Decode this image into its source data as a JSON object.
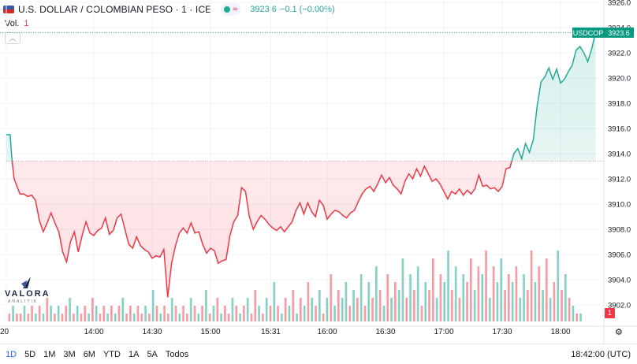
{
  "header": {
    "symbol_title": "U.S. DOLLAR / COLOMBIAN PESO · 1 · ICE",
    "status_glyph": "≈",
    "price": "3923.6",
    "change": "−0.1 (−0.00%)",
    "vol_label": "Vol.",
    "vol_value": "1"
  },
  "logo": {
    "name": "VALORA",
    "sub": "ANALITIK"
  },
  "price_tag": {
    "symbol": "USDCOP",
    "value": "3923.6"
  },
  "volume_marker": "1",
  "range_buttons": [
    "1D",
    "5D",
    "1M",
    "3M",
    "6M",
    "YTD",
    "1A",
    "5A",
    "Todos"
  ],
  "active_range": "1D",
  "clock": "18:42:00 (UTC)",
  "colors": {
    "up": "#22ab94",
    "down": "#f23645",
    "accent": "#2962ff"
  },
  "icons": {
    "settings": "gear-icon",
    "collapse": "chevron-up-icon"
  },
  "chart_data": {
    "type": "area",
    "title": "U.S. DOLLAR / COLOMBIAN PESO · 1 · ICE",
    "baseline": 3913.4,
    "ylim": [
      3901.0,
      3926.0
    ],
    "y_ticks": [
      3902.0,
      3904.0,
      3906.0,
      3908.0,
      3910.0,
      3912.0,
      3914.0,
      3916.0,
      3918.0,
      3920.0,
      3922.0,
      3924.0,
      3926.0
    ],
    "x_ticks": [
      "20",
      "14:00",
      "14:30",
      "15:00",
      "15:31",
      "16:00",
      "16:30",
      "17:00",
      "17:30",
      "18:00"
    ],
    "x_tick_minutes": [
      795,
      840,
      870,
      900,
      931,
      960,
      990,
      1020,
      1050,
      1080
    ],
    "xlim": [
      795,
      1121
    ],
    "price_series": [
      [
        795,
        3915.5
      ],
      [
        797,
        3915.5
      ],
      [
        797.5,
        3914.3
      ],
      [
        798,
        3913.4
      ],
      [
        799,
        3912.0
      ],
      [
        800,
        3911.6
      ],
      [
        802,
        3910.8
      ],
      [
        804,
        3910.8
      ],
      [
        806,
        3910.6
      ],
      [
        808,
        3910.7
      ],
      [
        810,
        3910.3
      ],
      [
        812,
        3908.7
      ],
      [
        814,
        3907.8
      ],
      [
        816,
        3908.5
      ],
      [
        818,
        3909.3
      ],
      [
        820,
        3908.5
      ],
      [
        822,
        3907.8
      ],
      [
        824,
        3906.2
      ],
      [
        826,
        3905.4
      ],
      [
        828,
        3907.0
      ],
      [
        830,
        3907.8
      ],
      [
        832,
        3906.2
      ],
      [
        834,
        3907.5
      ],
      [
        836,
        3908.6
      ],
      [
        838,
        3907.7
      ],
      [
        840,
        3907.5
      ],
      [
        842,
        3907.9
      ],
      [
        844,
        3908.1
      ],
      [
        846,
        3908.9
      ],
      [
        848,
        3907.6
      ],
      [
        850,
        3907.9
      ],
      [
        852,
        3908.9
      ],
      [
        854,
        3909.2
      ],
      [
        856,
        3908.0
      ],
      [
        858,
        3906.8
      ],
      [
        860,
        3906.5
      ],
      [
        862,
        3907.4
      ],
      [
        864,
        3906.7
      ],
      [
        866,
        3906.4
      ],
      [
        868,
        3906.2
      ],
      [
        870,
        3905.7
      ],
      [
        872,
        3905.9
      ],
      [
        874,
        3905.8
      ],
      [
        876,
        3906.4
      ],
      [
        878,
        3902.6
      ],
      [
        880,
        3905.3
      ],
      [
        882,
        3906.7
      ],
      [
        884,
        3907.7
      ],
      [
        886,
        3908.1
      ],
      [
        888,
        3907.7
      ],
      [
        890,
        3908.5
      ],
      [
        892,
        3907.7
      ],
      [
        894,
        3907.8
      ],
      [
        896,
        3906.8
      ],
      [
        898,
        3906.1
      ],
      [
        900,
        3906.5
      ],
      [
        902,
        3906.3
      ],
      [
        904,
        3905.3
      ],
      [
        906,
        3905.5
      ],
      [
        908,
        3905.6
      ],
      [
        910,
        3907.5
      ],
      [
        912,
        3908.6
      ],
      [
        914,
        3909.1
      ],
      [
        916,
        3911.3
      ],
      [
        918,
        3911.0
      ],
      [
        920,
        3909.0
      ],
      [
        922,
        3908.0
      ],
      [
        924,
        3908.6
      ],
      [
        926,
        3909.1
      ],
      [
        928,
        3908.8
      ],
      [
        930,
        3908.4
      ],
      [
        932,
        3908.1
      ],
      [
        934,
        3907.9
      ],
      [
        936,
        3908.2
      ],
      [
        938,
        3907.8
      ],
      [
        940,
        3908.2
      ],
      [
        942,
        3908.6
      ],
      [
        944,
        3909.5
      ],
      [
        946,
        3910.1
      ],
      [
        948,
        3909.2
      ],
      [
        950,
        3910.1
      ],
      [
        952,
        3909.4
      ],
      [
        954,
        3909.0
      ],
      [
        956,
        3910.3
      ],
      [
        958,
        3909.9
      ],
      [
        960,
        3908.8
      ],
      [
        962,
        3909.2
      ],
      [
        964,
        3909.5
      ],
      [
        966,
        3909.4
      ],
      [
        968,
        3909.1
      ],
      [
        970,
        3908.9
      ],
      [
        972,
        3909.3
      ],
      [
        974,
        3909.5
      ],
      [
        976,
        3910.2
      ],
      [
        978,
        3910.8
      ],
      [
        980,
        3911.2
      ],
      [
        982,
        3911.4
      ],
      [
        984,
        3911.0
      ],
      [
        986,
        3911.6
      ],
      [
        988,
        3912.3
      ],
      [
        990,
        3911.7
      ],
      [
        992,
        3912.1
      ],
      [
        994,
        3911.5
      ],
      [
        996,
        3911.2
      ],
      [
        998,
        3910.8
      ],
      [
        1000,
        3911.8
      ],
      [
        1002,
        3912.4
      ],
      [
        1004,
        3912.0
      ],
      [
        1006,
        3912.8
      ],
      [
        1008,
        3912.2
      ],
      [
        1010,
        3913.0
      ],
      [
        1012,
        3912.4
      ],
      [
        1014,
        3911.8
      ],
      [
        1016,
        3912.0
      ],
      [
        1018,
        3911.6
      ],
      [
        1020,
        3911.0
      ],
      [
        1022,
        3910.4
      ],
      [
        1024,
        3911.0
      ],
      [
        1026,
        3910.8
      ],
      [
        1028,
        3911.2
      ],
      [
        1030,
        3910.7
      ],
      [
        1032,
        3911.1
      ],
      [
        1034,
        3910.8
      ],
      [
        1036,
        3911.2
      ],
      [
        1038,
        3912.3
      ],
      [
        1040,
        3911.4
      ],
      [
        1042,
        3911.5
      ],
      [
        1044,
        3911.2
      ],
      [
        1046,
        3911.3
      ],
      [
        1048,
        3911.0
      ],
      [
        1050,
        3911.4
      ],
      [
        1052,
        3912.8
      ],
      [
        1054,
        3912.9
      ],
      [
        1056,
        3914.0
      ],
      [
        1058,
        3914.4
      ],
      [
        1060,
        3913.6
      ],
      [
        1062,
        3914.8
      ],
      [
        1064,
        3914.1
      ],
      [
        1066,
        3915.1
      ],
      [
        1068,
        3917.8
      ],
      [
        1070,
        3919.7
      ],
      [
        1072,
        3920.1
      ],
      [
        1074,
        3920.8
      ],
      [
        1076,
        3919.9
      ],
      [
        1078,
        3920.7
      ],
      [
        1080,
        3919.6
      ],
      [
        1082,
        3919.9
      ],
      [
        1084,
        3920.5
      ],
      [
        1086,
        3921.0
      ],
      [
        1088,
        3922.2
      ],
      [
        1090,
        3922.5
      ],
      [
        1092,
        3922.0
      ],
      [
        1094,
        3921.3
      ],
      [
        1096,
        3922.3
      ],
      [
        1098,
        3923.6
      ]
    ],
    "volume": [
      {
        "v": 1,
        "c": "d"
      },
      {
        "v": 2,
        "c": "u"
      },
      {
        "v": 1,
        "c": "d"
      },
      {
        "v": 1,
        "c": "d"
      },
      {
        "v": 2,
        "c": "u"
      },
      {
        "v": 1,
        "c": "d"
      },
      {
        "v": 2,
        "c": "d"
      },
      {
        "v": 1,
        "c": "u"
      },
      {
        "v": 2,
        "c": "d"
      },
      {
        "v": 1,
        "c": "u"
      },
      {
        "v": 3,
        "c": "d"
      },
      {
        "v": 2,
        "c": "u"
      },
      {
        "v": 1,
        "c": "d"
      },
      {
        "v": 2,
        "c": "u"
      },
      {
        "v": 1,
        "c": "d"
      },
      {
        "v": 2,
        "c": "d"
      },
      {
        "v": 3,
        "c": "u"
      },
      {
        "v": 1,
        "c": "d"
      },
      {
        "v": 2,
        "c": "u"
      },
      {
        "v": 1,
        "c": "d"
      },
      {
        "v": 2,
        "c": "d"
      },
      {
        "v": 1,
        "c": "u"
      },
      {
        "v": 3,
        "c": "d"
      },
      {
        "v": 2,
        "c": "u"
      },
      {
        "v": 1,
        "c": "d"
      },
      {
        "v": 2,
        "c": "d"
      },
      {
        "v": 1,
        "c": "u"
      },
      {
        "v": 2,
        "c": "d"
      },
      {
        "v": 1,
        "c": "u"
      },
      {
        "v": 2,
        "c": "d"
      },
      {
        "v": 3,
        "c": "u"
      },
      {
        "v": 1,
        "c": "d"
      },
      {
        "v": 2,
        "c": "d"
      },
      {
        "v": 1,
        "c": "u"
      },
      {
        "v": 2,
        "c": "d"
      },
      {
        "v": 1,
        "c": "d"
      },
      {
        "v": 2,
        "c": "u"
      },
      {
        "v": 1,
        "c": "d"
      },
      {
        "v": 4,
        "c": "u"
      },
      {
        "v": 2,
        "c": "d"
      },
      {
        "v": 1,
        "c": "u"
      },
      {
        "v": 2,
        "c": "d"
      },
      {
        "v": 1,
        "c": "d"
      },
      {
        "v": 3,
        "c": "u"
      },
      {
        "v": 2,
        "c": "d"
      },
      {
        "v": 1,
        "c": "u"
      },
      {
        "v": 2,
        "c": "d"
      },
      {
        "v": 1,
        "c": "d"
      },
      {
        "v": 3,
        "c": "u"
      },
      {
        "v": 2,
        "c": "d"
      },
      {
        "v": 1,
        "c": "u"
      },
      {
        "v": 2,
        "c": "d"
      },
      {
        "v": 4,
        "c": "u"
      },
      {
        "v": 1,
        "c": "d"
      },
      {
        "v": 2,
        "c": "u"
      },
      {
        "v": 3,
        "c": "d"
      },
      {
        "v": 1,
        "c": "u"
      },
      {
        "v": 2,
        "c": "d"
      },
      {
        "v": 1,
        "c": "d"
      },
      {
        "v": 3,
        "c": "u"
      },
      {
        "v": 2,
        "c": "d"
      },
      {
        "v": 1,
        "c": "u"
      },
      {
        "v": 2,
        "c": "d"
      },
      {
        "v": 3,
        "c": "u"
      },
      {
        "v": 1,
        "c": "d"
      },
      {
        "v": 4,
        "c": "d"
      },
      {
        "v": 2,
        "c": "u"
      },
      {
        "v": 1,
        "c": "d"
      },
      {
        "v": 3,
        "c": "u"
      },
      {
        "v": 2,
        "c": "d"
      },
      {
        "v": 5,
        "c": "u"
      },
      {
        "v": 2,
        "c": "d"
      },
      {
        "v": 1,
        "c": "u"
      },
      {
        "v": 3,
        "c": "d"
      },
      {
        "v": 2,
        "c": "u"
      },
      {
        "v": 4,
        "c": "d"
      },
      {
        "v": 1,
        "c": "u"
      },
      {
        "v": 3,
        "c": "d"
      },
      {
        "v": 2,
        "c": "u"
      },
      {
        "v": 5,
        "c": "d"
      },
      {
        "v": 3,
        "c": "u"
      },
      {
        "v": 2,
        "c": "d"
      },
      {
        "v": 4,
        "c": "u"
      },
      {
        "v": 1,
        "c": "d"
      },
      {
        "v": 3,
        "c": "u"
      },
      {
        "v": 6,
        "c": "d"
      },
      {
        "v": 2,
        "c": "u"
      },
      {
        "v": 4,
        "c": "d"
      },
      {
        "v": 3,
        "c": "u"
      },
      {
        "v": 5,
        "c": "u"
      },
      {
        "v": 2,
        "c": "d"
      },
      {
        "v": 4,
        "c": "u"
      },
      {
        "v": 3,
        "c": "d"
      },
      {
        "v": 6,
        "c": "u"
      },
      {
        "v": 2,
        "c": "d"
      },
      {
        "v": 5,
        "c": "u"
      },
      {
        "v": 3,
        "c": "d"
      },
      {
        "v": 7,
        "c": "u"
      },
      {
        "v": 4,
        "c": "d"
      },
      {
        "v": 2,
        "c": "u"
      },
      {
        "v": 6,
        "c": "d"
      },
      {
        "v": 3,
        "c": "u"
      },
      {
        "v": 5,
        "c": "d"
      },
      {
        "v": 4,
        "c": "u"
      },
      {
        "v": 8,
        "c": "u"
      },
      {
        "v": 3,
        "c": "d"
      },
      {
        "v": 6,
        "c": "u"
      },
      {
        "v": 4,
        "c": "d"
      },
      {
        "v": 7,
        "c": "u"
      },
      {
        "v": 2,
        "c": "d"
      },
      {
        "v": 5,
        "c": "u"
      },
      {
        "v": 4,
        "c": "d"
      },
      {
        "v": 8,
        "c": "d"
      },
      {
        "v": 3,
        "c": "u"
      },
      {
        "v": 6,
        "c": "d"
      },
      {
        "v": 5,
        "c": "u"
      },
      {
        "v": 9,
        "c": "u"
      },
      {
        "v": 4,
        "c": "d"
      },
      {
        "v": 7,
        "c": "u"
      },
      {
        "v": 3,
        "c": "d"
      },
      {
        "v": 6,
        "c": "u"
      },
      {
        "v": 5,
        "c": "d"
      },
      {
        "v": 8,
        "c": "d"
      },
      {
        "v": 4,
        "c": "u"
      },
      {
        "v": 7,
        "c": "d"
      },
      {
        "v": 6,
        "c": "u"
      },
      {
        "v": 9,
        "c": "d"
      },
      {
        "v": 3,
        "c": "u"
      },
      {
        "v": 7,
        "c": "d"
      },
      {
        "v": 5,
        "c": "u"
      },
      {
        "v": 8,
        "c": "u"
      },
      {
        "v": 4,
        "c": "d"
      },
      {
        "v": 6,
        "c": "d"
      },
      {
        "v": 5,
        "c": "u"
      },
      {
        "v": 7,
        "c": "d"
      },
      {
        "v": 3,
        "c": "u"
      },
      {
        "v": 6,
        "c": "u"
      },
      {
        "v": 4,
        "c": "d"
      },
      {
        "v": 9,
        "c": "d"
      },
      {
        "v": 5,
        "c": "u"
      },
      {
        "v": 7,
        "c": "d"
      },
      {
        "v": 4,
        "c": "u"
      },
      {
        "v": 8,
        "c": "d"
      },
      {
        "v": 3,
        "c": "u"
      },
      {
        "v": 5,
        "c": "d"
      },
      {
        "v": 9,
        "c": "u"
      },
      {
        "v": 4,
        "c": "d"
      },
      {
        "v": 6,
        "c": "u"
      },
      {
        "v": 3,
        "c": "d"
      },
      {
        "v": 2,
        "c": "u"
      },
      {
        "v": 1,
        "c": "d"
      },
      {
        "v": 1,
        "c": "u"
      }
    ]
  }
}
